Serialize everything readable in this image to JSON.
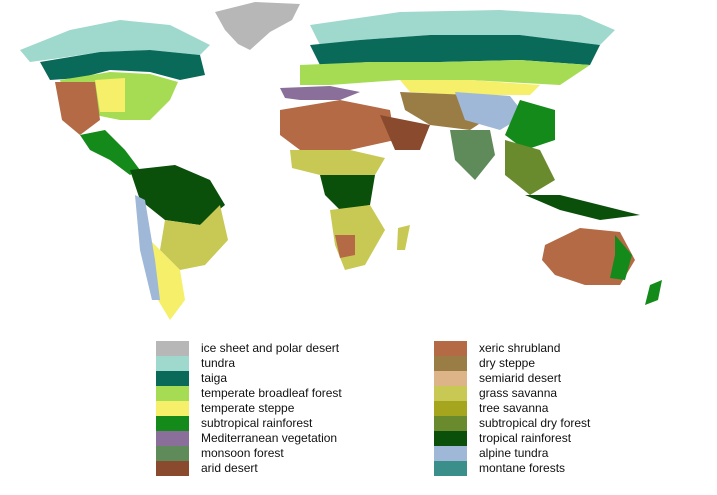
{
  "legend": {
    "left": [
      {
        "label": "ice sheet and polar desert",
        "color": "#b7b7b7"
      },
      {
        "label": "tundra",
        "color": "#9fd8cc"
      },
      {
        "label": "taiga",
        "color": "#0a6a5a"
      },
      {
        "label": "temperate broadleaf forest",
        "color": "#a5dc54"
      },
      {
        "label": "temperate steppe",
        "color": "#f5ef6a"
      },
      {
        "label": "subtropical rainforest",
        "color": "#148a1a"
      },
      {
        "label": "Mediterranean vegetation",
        "color": "#8a6f9b"
      },
      {
        "label": "monsoon forest",
        "color": "#5f8a5a"
      },
      {
        "label": "arid desert",
        "color": "#8a4a2e"
      }
    ],
    "right": [
      {
        "label": "xeric shrubland",
        "color": "#b36a45"
      },
      {
        "label": "dry steppe",
        "color": "#9a7d45"
      },
      {
        "label": "semiarid desert",
        "color": "#dcb488"
      },
      {
        "label": "grass savanna",
        "color": "#c8c855"
      },
      {
        "label": "tree savanna",
        "color": "#a5a51e"
      },
      {
        "label": "subtropical dry forest",
        "color": "#6a8a2e"
      },
      {
        "label": "tropical rainforest",
        "color": "#0a4f0a"
      },
      {
        "label": "alpine tundra",
        "color": "#9fb8d8"
      },
      {
        "label": "montane forests",
        "color": "#3a8f8a"
      }
    ]
  }
}
